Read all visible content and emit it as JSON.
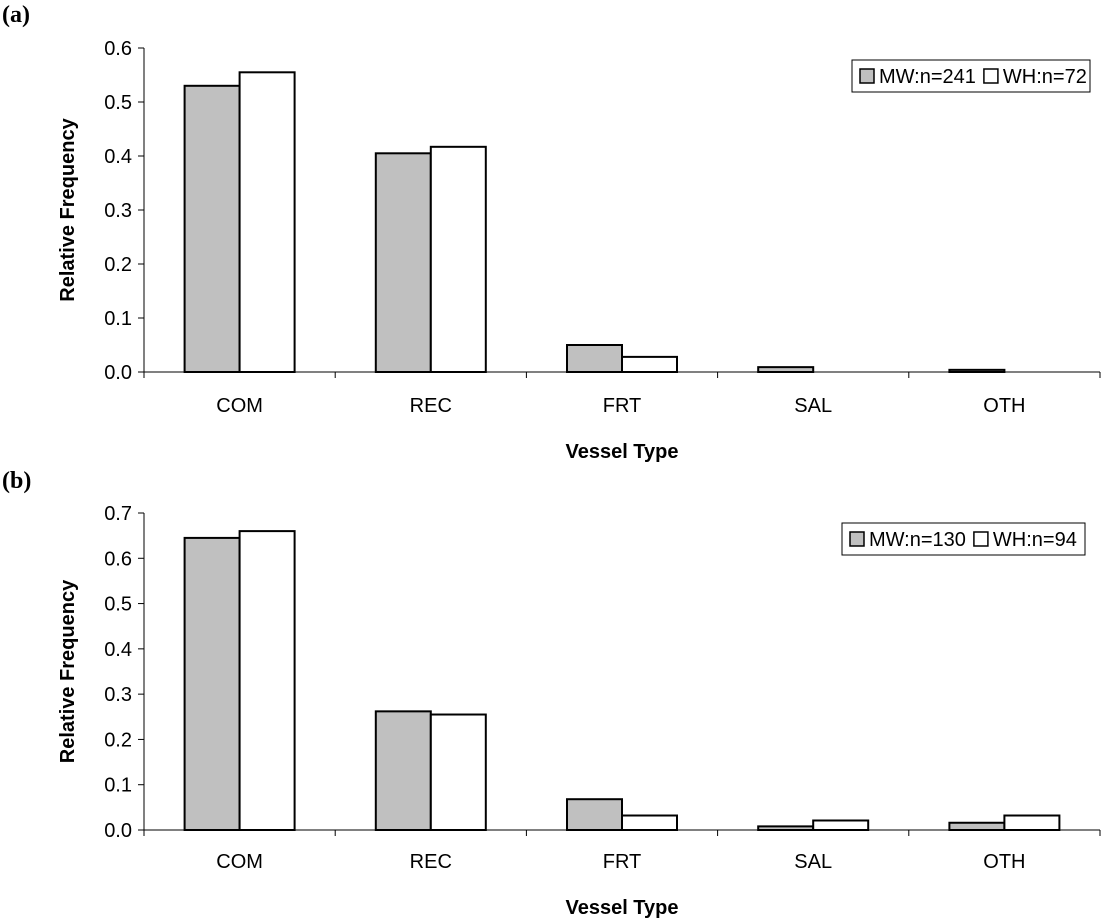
{
  "chart_data": [
    {
      "type": "bar",
      "panel_label": "(a)",
      "categories": [
        "COM",
        "REC",
        "FRT",
        "SAL",
        "OTH"
      ],
      "series": [
        {
          "name": "MW:n=241",
          "color": "#c0c0c0",
          "values": [
            0.53,
            0.405,
            0.05,
            0.009,
            0.004
          ]
        },
        {
          "name": "WH:n=72",
          "color": "#ffffff",
          "values": [
            0.555,
            0.417,
            0.028,
            0.0,
            0.0
          ]
        }
      ],
      "xlabel": "Vessel Type",
      "ylabel": "Relative Frequency",
      "ylim": [
        0,
        0.6
      ],
      "yticks": [
        "0.0",
        "0.1",
        "0.2",
        "0.3",
        "0.4",
        "0.5",
        "0.6"
      ],
      "grid": false,
      "legend_position": "top-right"
    },
    {
      "type": "bar",
      "panel_label": "(b)",
      "categories": [
        "COM",
        "REC",
        "FRT",
        "SAL",
        "OTH"
      ],
      "series": [
        {
          "name": "MW:n=130",
          "color": "#c0c0c0",
          "values": [
            0.645,
            0.262,
            0.068,
            0.008,
            0.016
          ]
        },
        {
          "name": "WH:n=94",
          "color": "#ffffff",
          "values": [
            0.66,
            0.255,
            0.032,
            0.021,
            0.032
          ]
        }
      ],
      "xlabel": "Vessel Type",
      "ylabel": "Relative Frequency",
      "ylim": [
        0,
        0.7
      ],
      "yticks": [
        "0.0",
        "0.1",
        "0.2",
        "0.3",
        "0.4",
        "0.5",
        "0.6",
        "0.7"
      ],
      "grid": false,
      "legend_position": "top-right"
    }
  ]
}
